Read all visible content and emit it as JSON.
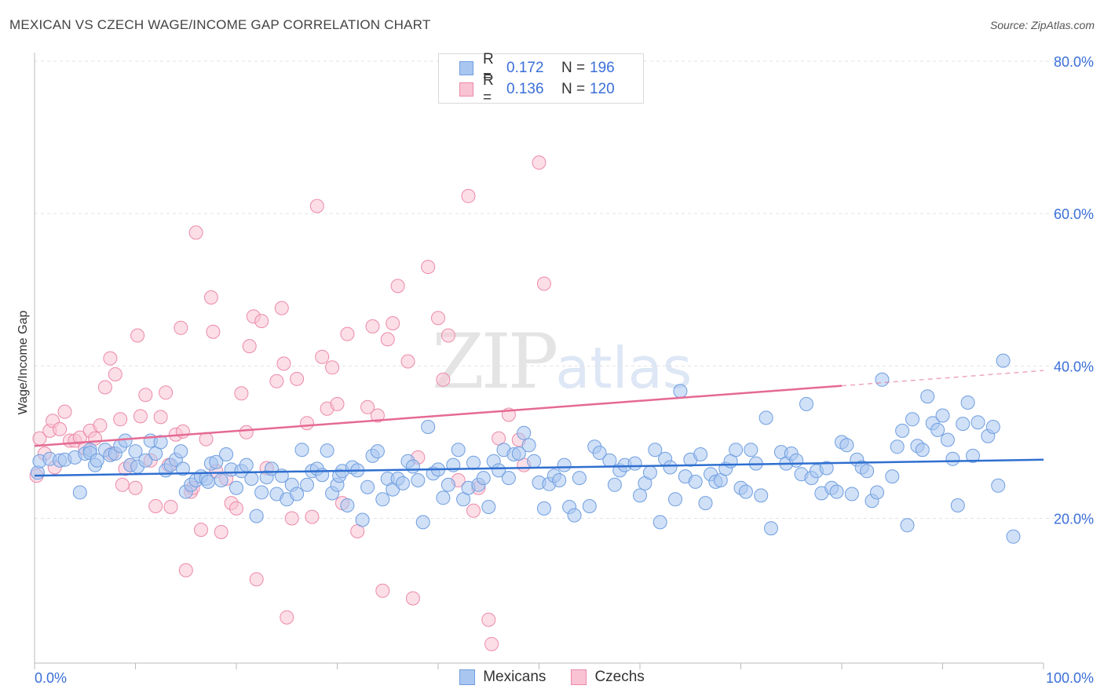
{
  "title": "MEXICAN VS CZECH WAGE/INCOME GAP CORRELATION CHART",
  "source": "Source: ZipAtlas.com",
  "watermark": {
    "zip": "ZIP",
    "atlas": "atlas"
  },
  "legend": {
    "rows": [
      {
        "r_label": "R = ",
        "r_value": "0.172",
        "n_label": "N = ",
        "n_value": "196",
        "fill": "#a9c6f0",
        "stroke": "#6f9ee0"
      },
      {
        "r_label": "R = ",
        "r_value": "0.136",
        "n_label": "N = ",
        "n_value": "120",
        "fill": "#f9c3d3",
        "stroke": "#ec8aa9"
      }
    ]
  },
  "chart_data": {
    "type": "scatter",
    "title": "MEXICAN VS CZECH WAGE/INCOME GAP CORRELATION CHART",
    "xlabel": "",
    "ylabel": "Wage/Income Gap",
    "xlim": [
      0,
      100
    ],
    "ylim": [
      1,
      80
    ],
    "x_tick_labels": [
      "0.0%",
      "100.0%"
    ],
    "y_ticks": [
      20,
      40,
      60,
      80
    ],
    "y_tick_labels": [
      "20.0%",
      "40.0%",
      "60.0%",
      "80.0%"
    ],
    "grid": "horizontal dashed",
    "legend_position": "top-center and bottom",
    "series": [
      {
        "name": "Mexicans",
        "color": "#6f9ee0",
        "fill": "#a9c6f0",
        "trend": {
          "x": [
            0,
            100
          ],
          "y": [
            25.6,
            27.7
          ]
        },
        "points": [
          [
            0.3,
            26.0
          ],
          [
            0.5,
            27.5
          ],
          [
            1.5,
            27.8
          ],
          [
            2.5,
            27.6
          ],
          [
            3.0,
            27.7
          ],
          [
            4.0,
            28.0
          ],
          [
            4.5,
            23.4
          ],
          [
            5.0,
            28.5
          ],
          [
            5.5,
            29.0
          ],
          [
            5.5,
            28.6
          ],
          [
            6.0,
            27.0
          ],
          [
            6.2,
            27.6
          ],
          [
            7.0,
            29.0
          ],
          [
            7.5,
            28.3
          ],
          [
            8.0,
            28.5
          ],
          [
            8.5,
            29.5
          ],
          [
            9.0,
            30.2
          ],
          [
            9.5,
            27.0
          ],
          [
            10.0,
            28.8
          ],
          [
            10.2,
            26.8
          ],
          [
            11.0,
            27.6
          ],
          [
            11.5,
            30.2
          ],
          [
            12.0,
            28.5
          ],
          [
            12.5,
            30.0
          ],
          [
            13.0,
            26.3
          ],
          [
            13.5,
            27.0
          ],
          [
            14.0,
            27.7
          ],
          [
            14.5,
            28.8
          ],
          [
            14.7,
            26.5
          ],
          [
            15.0,
            23.5
          ],
          [
            15.5,
            24.4
          ],
          [
            16.0,
            25.0
          ],
          [
            16.5,
            25.5
          ],
          [
            17.0,
            25.2
          ],
          [
            17.2,
            24.8
          ],
          [
            17.5,
            27.2
          ],
          [
            18.0,
            27.4
          ],
          [
            18.5,
            25.0
          ],
          [
            19.0,
            28.4
          ],
          [
            19.5,
            26.4
          ],
          [
            20.0,
            24.0
          ],
          [
            20.5,
            26.2
          ],
          [
            21.0,
            27.0
          ],
          [
            21.5,
            25.2
          ],
          [
            22.0,
            20.3
          ],
          [
            22.5,
            23.4
          ],
          [
            23.0,
            25.4
          ],
          [
            23.5,
            26.5
          ],
          [
            24.0,
            23.2
          ],
          [
            24.5,
            25.6
          ],
          [
            25.0,
            22.5
          ],
          [
            25.5,
            24.4
          ],
          [
            26.0,
            23.2
          ],
          [
            26.5,
            29.0
          ],
          [
            27.0,
            24.4
          ],
          [
            27.5,
            26.2
          ],
          [
            28.0,
            26.5
          ],
          [
            28.5,
            25.7
          ],
          [
            29.0,
            28.9
          ],
          [
            29.5,
            23.3
          ],
          [
            30.0,
            24.4
          ],
          [
            30.2,
            25.6
          ],
          [
            30.5,
            26.2
          ],
          [
            31.0,
            21.7
          ],
          [
            31.5,
            26.7
          ],
          [
            32.0,
            26.3
          ],
          [
            32.5,
            19.8
          ],
          [
            33.0,
            24.1
          ],
          [
            33.5,
            28.2
          ],
          [
            34.0,
            28.8
          ],
          [
            34.5,
            22.5
          ],
          [
            35.0,
            25.2
          ],
          [
            35.5,
            23.8
          ],
          [
            36.0,
            25.2
          ],
          [
            36.5,
            24.6
          ],
          [
            37.0,
            27.5
          ],
          [
            37.5,
            26.8
          ],
          [
            38.0,
            25.0
          ],
          [
            38.5,
            19.5
          ],
          [
            39.0,
            32.0
          ],
          [
            39.5,
            25.9
          ],
          [
            40.0,
            26.4
          ],
          [
            40.5,
            22.7
          ],
          [
            41.0,
            24.4
          ],
          [
            41.5,
            27.0
          ],
          [
            42.0,
            29.0
          ],
          [
            42.5,
            22.5
          ],
          [
            43.0,
            24.0
          ],
          [
            43.5,
            27.3
          ],
          [
            44.0,
            24.4
          ],
          [
            44.5,
            25.3
          ],
          [
            45.0,
            21.5
          ],
          [
            45.5,
            27.5
          ],
          [
            46.0,
            26.3
          ],
          [
            46.5,
            29.0
          ],
          [
            47.0,
            25.3
          ],
          [
            47.5,
            28.4
          ],
          [
            48.0,
            28.5
          ],
          [
            48.5,
            31.2
          ],
          [
            49.0,
            29.6
          ],
          [
            49.5,
            27.5
          ],
          [
            50.0,
            24.7
          ],
          [
            50.5,
            21.3
          ],
          [
            51.0,
            24.5
          ],
          [
            51.5,
            25.6
          ],
          [
            52.0,
            25.0
          ],
          [
            52.5,
            27.0
          ],
          [
            53.0,
            21.5
          ],
          [
            53.5,
            20.4
          ],
          [
            54.0,
            25.3
          ],
          [
            55.0,
            21.6
          ],
          [
            55.5,
            29.4
          ],
          [
            56.0,
            28.6
          ],
          [
            57.0,
            27.6
          ],
          [
            57.5,
            24.4
          ],
          [
            58.0,
            26.3
          ],
          [
            58.5,
            27.0
          ],
          [
            59.5,
            27.2
          ],
          [
            60.0,
            23.0
          ],
          [
            60.5,
            24.6
          ],
          [
            61.0,
            26.0
          ],
          [
            61.5,
            29.0
          ],
          [
            62.0,
            19.5
          ],
          [
            62.5,
            27.8
          ],
          [
            63.0,
            26.7
          ],
          [
            63.5,
            22.5
          ],
          [
            64.0,
            36.7
          ],
          [
            64.5,
            25.5
          ],
          [
            65.0,
            27.7
          ],
          [
            65.5,
            24.8
          ],
          [
            66.0,
            28.4
          ],
          [
            66.5,
            22.0
          ],
          [
            67.0,
            25.8
          ],
          [
            67.5,
            24.8
          ],
          [
            68.0,
            25.0
          ],
          [
            68.5,
            26.5
          ],
          [
            69.0,
            27.5
          ],
          [
            69.5,
            29.0
          ],
          [
            70.0,
            24.0
          ],
          [
            70.5,
            23.5
          ],
          [
            71.0,
            29.0
          ],
          [
            71.5,
            27.2
          ],
          [
            72.0,
            23.0
          ],
          [
            72.5,
            33.2
          ],
          [
            73.0,
            18.7
          ],
          [
            74.0,
            28.7
          ],
          [
            74.5,
            27.2
          ],
          [
            75.0,
            28.5
          ],
          [
            75.5,
            27.6
          ],
          [
            76.0,
            25.8
          ],
          [
            76.5,
            35.0
          ],
          [
            77.0,
            25.3
          ],
          [
            77.5,
            26.2
          ],
          [
            78.0,
            23.3
          ],
          [
            78.5,
            26.6
          ],
          [
            79.0,
            24.0
          ],
          [
            79.5,
            23.5
          ],
          [
            80.0,
            30.0
          ],
          [
            80.5,
            29.6
          ],
          [
            81.0,
            23.2
          ],
          [
            81.5,
            27.7
          ],
          [
            82.0,
            26.7
          ],
          [
            82.5,
            26.2
          ],
          [
            83.0,
            22.3
          ],
          [
            83.5,
            23.4
          ],
          [
            84.0,
            38.2
          ],
          [
            85.0,
            25.5
          ],
          [
            85.5,
            29.4
          ],
          [
            86.0,
            31.5
          ],
          [
            86.5,
            19.1
          ],
          [
            87.0,
            33.0
          ],
          [
            87.5,
            29.5
          ],
          [
            88.0,
            29.0
          ],
          [
            88.5,
            36.0
          ],
          [
            89.0,
            32.5
          ],
          [
            89.5,
            31.6
          ],
          [
            90.0,
            33.5
          ],
          [
            90.5,
            30.3
          ],
          [
            91.0,
            27.8
          ],
          [
            91.5,
            21.7
          ],
          [
            92.0,
            32.4
          ],
          [
            92.5,
            35.2
          ],
          [
            93.0,
            28.2
          ],
          [
            93.5,
            32.6
          ],
          [
            94.5,
            30.8
          ],
          [
            95.0,
            32.0
          ],
          [
            95.5,
            24.3
          ],
          [
            96.0,
            40.7
          ],
          [
            97.0,
            17.6
          ]
        ]
      },
      {
        "name": "Czechs",
        "color": "#ec8aa9",
        "fill": "#f9c3d3",
        "trend": {
          "x": [
            0,
            80,
            100
          ],
          "y": [
            29.5,
            37.4,
            39.4
          ],
          "dashed_from": 80
        },
        "points": [
          [
            0.2,
            25.6
          ],
          [
            0.5,
            30.5
          ],
          [
            1.0,
            28.5
          ],
          [
            1.5,
            31.5
          ],
          [
            1.8,
            32.8
          ],
          [
            2.0,
            26.7
          ],
          [
            2.5,
            31.7
          ],
          [
            3.0,
            34.0
          ],
          [
            3.5,
            30.2
          ],
          [
            4.0,
            30.2
          ],
          [
            4.5,
            30.6
          ],
          [
            5.0,
            29.2
          ],
          [
            5.5,
            31.5
          ],
          [
            6.0,
            30.5
          ],
          [
            6.5,
            32.2
          ],
          [
            7.0,
            37.2
          ],
          [
            7.5,
            41.0
          ],
          [
            7.7,
            28.5
          ],
          [
            8.0,
            38.9
          ],
          [
            8.5,
            33.0
          ],
          [
            8.7,
            24.4
          ],
          [
            9.0,
            26.5
          ],
          [
            9.5,
            27.0
          ],
          [
            10.0,
            24.0
          ],
          [
            10.2,
            44.0
          ],
          [
            10.5,
            33.4
          ],
          [
            11.0,
            36.2
          ],
          [
            11.5,
            27.6
          ],
          [
            12.0,
            21.6
          ],
          [
            12.5,
            33.3
          ],
          [
            13.0,
            36.5
          ],
          [
            13.3,
            27.0
          ],
          [
            13.5,
            21.5
          ],
          [
            14.0,
            31.0
          ],
          [
            14.5,
            45.0
          ],
          [
            14.7,
            31.4
          ],
          [
            15.0,
            13.2
          ],
          [
            15.5,
            23.5
          ],
          [
            15.7,
            24.0
          ],
          [
            16.0,
            57.5
          ],
          [
            16.5,
            18.5
          ],
          [
            17.0,
            30.4
          ],
          [
            17.5,
            49.0
          ],
          [
            17.7,
            44.5
          ],
          [
            18.0,
            26.2
          ],
          [
            18.5,
            18.2
          ],
          [
            19.0,
            25.2
          ],
          [
            19.5,
            22.0
          ],
          [
            20.0,
            21.3
          ],
          [
            20.5,
            36.4
          ],
          [
            21.0,
            31.3
          ],
          [
            21.3,
            42.6
          ],
          [
            21.7,
            46.5
          ],
          [
            22.0,
            12.0
          ],
          [
            22.5,
            45.9
          ],
          [
            23.0,
            26.6
          ],
          [
            24.0,
            38.0
          ],
          [
            24.5,
            47.6
          ],
          [
            24.7,
            40.3
          ],
          [
            25.0,
            7.0
          ],
          [
            25.5,
            20.0
          ],
          [
            26.0,
            38.3
          ],
          [
            27.0,
            32.5
          ],
          [
            27.5,
            20.2
          ],
          [
            28.0,
            61.0
          ],
          [
            28.5,
            41.2
          ],
          [
            29.0,
            34.4
          ],
          [
            29.5,
            39.8
          ],
          [
            30.0,
            35.0
          ],
          [
            30.5,
            22.0
          ],
          [
            31.0,
            44.2
          ],
          [
            32.0,
            18.3
          ],
          [
            33.0,
            34.6
          ],
          [
            33.5,
            45.2
          ],
          [
            34.0,
            33.5
          ],
          [
            34.5,
            10.5
          ],
          [
            35.0,
            43.5
          ],
          [
            35.5,
            45.6
          ],
          [
            36.0,
            50.5
          ],
          [
            37.0,
            40.6
          ],
          [
            37.5,
            9.5
          ],
          [
            38.0,
            28.0
          ],
          [
            39.0,
            53.0
          ],
          [
            40.0,
            46.3
          ],
          [
            40.5,
            38.2
          ],
          [
            41.0,
            44.0
          ],
          [
            42.0,
            25.0
          ],
          [
            43.0,
            62.3
          ],
          [
            43.5,
            21.0
          ],
          [
            44.0,
            24.0
          ],
          [
            45.0,
            6.7
          ],
          [
            45.3,
            3.5
          ],
          [
            46.0,
            30.5
          ],
          [
            47.0,
            33.6
          ],
          [
            48.0,
            30.3
          ],
          [
            48.5,
            27.0
          ],
          [
            50.0,
            66.7
          ],
          [
            50.5,
            50.8
          ]
        ]
      }
    ]
  },
  "bottom_legend": [
    {
      "label": "Mexicans",
      "fill": "#a9c6f0",
      "stroke": "#6f9ee0"
    },
    {
      "label": "Czechs",
      "fill": "#f9c3d3",
      "stroke": "#ec8aa9"
    }
  ]
}
